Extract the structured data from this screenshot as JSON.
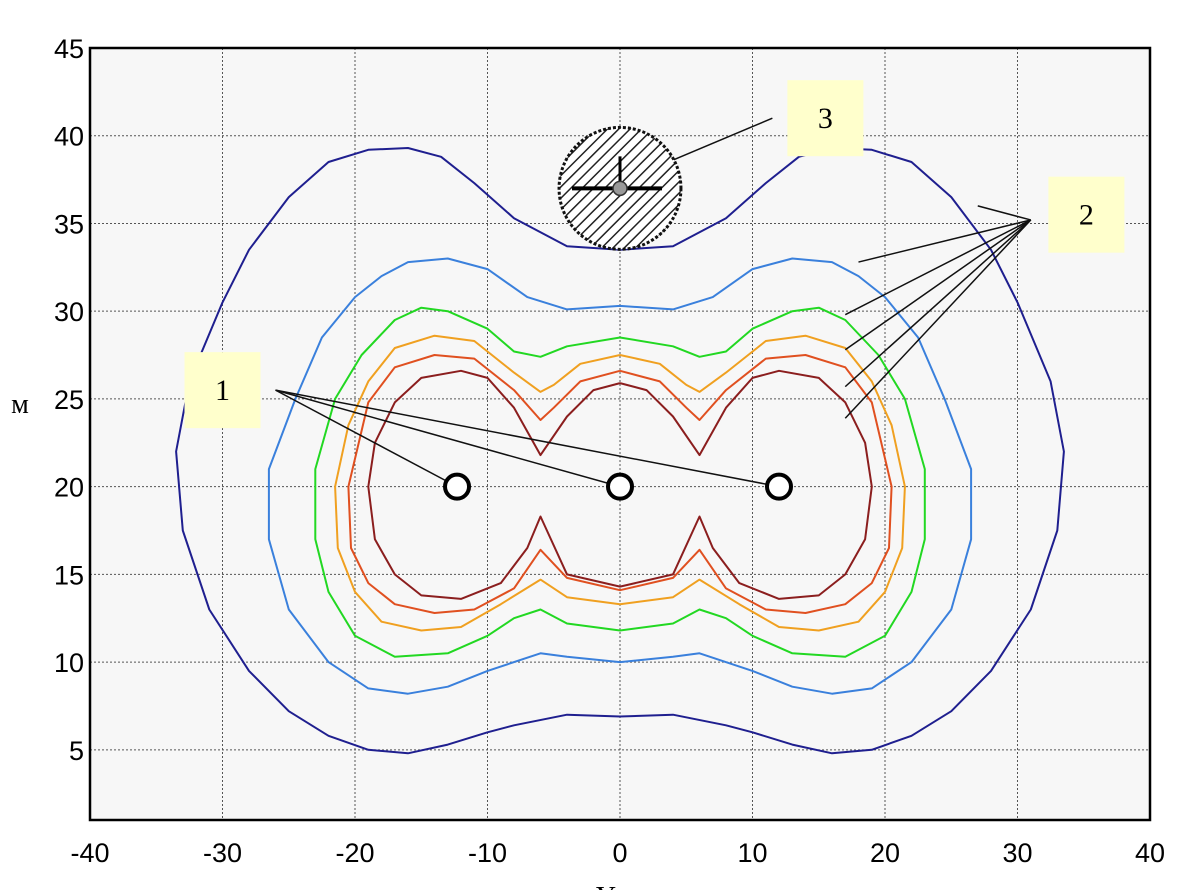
{
  "chart_data": {
    "type": "line",
    "title": "",
    "xlabel": "Y, м",
    "ylabel": "м",
    "xlim": [
      -40,
      40
    ],
    "ylim": [
      1,
      45
    ],
    "x_ticks": [
      "-40",
      "-30",
      "-20",
      "-10",
      "0",
      "10",
      "20",
      "30",
      "40"
    ],
    "y_ticks": [
      "5",
      "10",
      "15",
      "20",
      "25",
      "30",
      "35",
      "40",
      "45"
    ],
    "grid": true,
    "sources": [
      {
        "x": -12.3,
        "y": 20
      },
      {
        "x": 0,
        "y": 20
      },
      {
        "x": 12,
        "y": 20
      }
    ],
    "receiver": {
      "x": 0,
      "y": 37,
      "radius": 4.6
    },
    "callouts": [
      {
        "label": "1",
        "box": [
          -30,
          25.5
        ],
        "targets": [
          [
            -12.3,
            20
          ],
          [
            0,
            20
          ],
          [
            12,
            20
          ]
        ]
      },
      {
        "label": "2",
        "box": [
          35.2,
          35.5
        ],
        "targets": [
          [
            18,
            32.8
          ],
          [
            17,
            29.8
          ],
          [
            17,
            27.8
          ],
          [
            17,
            25.7
          ],
          [
            17,
            23.9
          ],
          [
            27,
            36
          ]
        ]
      },
      {
        "label": "3",
        "box": [
          15.5,
          41
        ],
        "targets": [
          [
            0.5,
            37.5
          ]
        ]
      }
    ],
    "series": [
      {
        "color": "#1f1f8f",
        "x": [
          0,
          4,
          8,
          11,
          13.5,
          16,
          19,
          22,
          25,
          28,
          30,
          32.5,
          33.5,
          33,
          31,
          28,
          25,
          22,
          19,
          16,
          13,
          10,
          8,
          4,
          0,
          -4,
          -8,
          -10,
          -13,
          -16,
          -19,
          -22,
          -25,
          -28,
          -31,
          -33,
          -33.5,
          -32.5,
          -30,
          -28,
          -25,
          -22,
          -19,
          -16,
          -13.5,
          -11,
          -8,
          -4,
          0
        ],
        "y": [
          33.5,
          33.7,
          35.3,
          37.3,
          38.8,
          39.3,
          39.2,
          38.5,
          36.5,
          33.5,
          30.5,
          26,
          22,
          17.5,
          13,
          9.5,
          7.2,
          5.8,
          5,
          4.8,
          5.3,
          6,
          6.4,
          7,
          6.9,
          7,
          6.4,
          6,
          5.3,
          4.8,
          5,
          5.8,
          7.2,
          9.5,
          13,
          17.5,
          22,
          26,
          30.5,
          33.5,
          36.5,
          38.5,
          39.2,
          39.3,
          38.8,
          37.3,
          35.3,
          33.7,
          33.5
        ]
      },
      {
        "color": "#3a80dc",
        "x": [
          0,
          4,
          7,
          10,
          13,
          16,
          18,
          20,
          22.5,
          24.5,
          26.5,
          26.5,
          25,
          22,
          19,
          16,
          13,
          10,
          6,
          4,
          0,
          -4,
          -6,
          -10,
          -13,
          -16,
          -19,
          -22,
          -25,
          -26.5,
          -26.5,
          -24.5,
          -22.5,
          -20,
          -18,
          -16,
          -13,
          -10,
          -7,
          -4,
          0
        ],
        "y": [
          30.3,
          30.1,
          30.8,
          32.4,
          33,
          32.8,
          32,
          30.8,
          28.5,
          25,
          21,
          17,
          13,
          10,
          8.5,
          8.2,
          8.6,
          9.5,
          10.5,
          10.3,
          10,
          10.3,
          10.5,
          9.5,
          8.6,
          8.2,
          8.5,
          10,
          13,
          17,
          21,
          25,
          28.5,
          30.8,
          32,
          32.8,
          33,
          32.4,
          30.8,
          30.1,
          30.3
        ]
      },
      {
        "color": "#22d822",
        "x": [
          0,
          4,
          6,
          8,
          10,
          13,
          15,
          17,
          19.5,
          21.5,
          23,
          23,
          22,
          20,
          17,
          13,
          10,
          8,
          6,
          4,
          0,
          -4,
          -6,
          -8,
          -10,
          -13,
          -17,
          -20,
          -22,
          -23,
          -23,
          -21.5,
          -19.5,
          -17,
          -15,
          -13,
          -10,
          -8,
          -6,
          -4,
          0
        ],
        "y": [
          28.5,
          28,
          27.4,
          27.7,
          29,
          30,
          30.2,
          29.5,
          27.5,
          25,
          21,
          17,
          14,
          11.5,
          10.3,
          10.5,
          11.5,
          12.5,
          13,
          12.2,
          11.8,
          12.2,
          13,
          12.5,
          11.5,
          10.5,
          10.3,
          11.5,
          14,
          17,
          21,
          25,
          27.5,
          29.5,
          30.2,
          30,
          29,
          27.7,
          27.4,
          28,
          28.5
        ]
      },
      {
        "color": "#f0a020",
        "x": [
          0,
          3,
          5,
          6,
          8,
          11,
          14,
          17,
          19,
          20.5,
          21.5,
          21.3,
          20,
          18,
          15,
          12,
          9,
          6,
          4,
          0,
          -4,
          -6,
          -9,
          -12,
          -15,
          -18,
          -20,
          -21.3,
          -21.5,
          -20.5,
          -19,
          -17,
          -14,
          -11,
          -8,
          -6,
          -5,
          -3,
          0
        ],
        "y": [
          27.5,
          27,
          25.8,
          25.4,
          26.5,
          28.3,
          28.6,
          27.9,
          26,
          23.5,
          20,
          16.5,
          14,
          12.3,
          11.8,
          12,
          13.3,
          14.7,
          13.7,
          13.3,
          13.7,
          14.7,
          13.3,
          12,
          11.8,
          12.3,
          14,
          16.5,
          20,
          23.5,
          26,
          27.9,
          28.6,
          28.3,
          26.5,
          25.4,
          25.8,
          27,
          27.5
        ]
      },
      {
        "color": "#e05020",
        "x": [
          0,
          3,
          5,
          6,
          8,
          11,
          14,
          17,
          19,
          20.5,
          20.3,
          19,
          17,
          14,
          11,
          8,
          6,
          4,
          0,
          -4,
          -6,
          -8,
          -11,
          -14,
          -17,
          -19,
          -20.3,
          -20.5,
          -19,
          -17,
          -14,
          -11,
          -8,
          -6,
          -5,
          -3,
          0
        ],
        "y": [
          26.6,
          26,
          24.5,
          23.8,
          25.5,
          27.3,
          27.5,
          26.8,
          24.8,
          20,
          16.5,
          14.5,
          13.3,
          12.8,
          13,
          14.2,
          16.4,
          14.8,
          14.1,
          14.8,
          16.4,
          14.2,
          13,
          12.8,
          13.3,
          14.5,
          16.5,
          20,
          24.8,
          26.8,
          27.5,
          27.3,
          25.5,
          23.8,
          24.5,
          26,
          26.6
        ]
      },
      {
        "color": "#8b1e1e",
        "x": [
          0,
          2,
          4,
          6,
          8,
          10,
          12,
          15,
          17,
          18.5,
          19,
          18.5,
          17,
          15,
          12,
          9,
          7,
          6,
          4,
          0,
          -4,
          -6,
          -7,
          -9,
          -12,
          -15,
          -17,
          -18.5,
          -19,
          -18.5,
          -17,
          -15,
          -12,
          -10,
          -8,
          -6,
          -4,
          -2,
          0
        ],
        "y": [
          25.9,
          25.5,
          24,
          21.8,
          24.5,
          26.2,
          26.6,
          26.2,
          24.8,
          22.5,
          20,
          17,
          15,
          13.8,
          13.6,
          14.5,
          16.5,
          18.3,
          15,
          14.3,
          15,
          18.3,
          16.5,
          14.5,
          13.6,
          13.8,
          15,
          17,
          20,
          22.5,
          24.8,
          26.2,
          26.6,
          26.2,
          24.5,
          21.8,
          24,
          25.5,
          25.9
        ]
      }
    ]
  }
}
